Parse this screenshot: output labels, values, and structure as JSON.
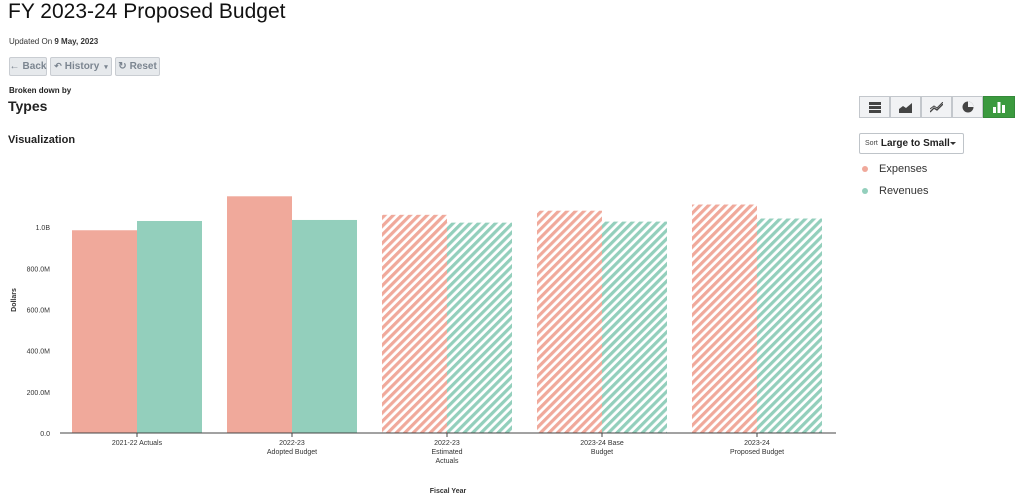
{
  "header": {
    "title": "FY 2023-24 Proposed Budget",
    "updated_prefix": "Updated On",
    "updated_date": "9 May, 2023"
  },
  "toolbar": {
    "back_label": "Back",
    "history_label": "History",
    "reset_label": "Reset"
  },
  "breakdown": {
    "label": "Broken down by",
    "value": "Types"
  },
  "visualization_label": "Visualization",
  "sort": {
    "prefix": "Sort",
    "value": "Large to Small"
  },
  "view_buttons": [
    {
      "icon": "table-icon"
    },
    {
      "icon": "area-chart-icon"
    },
    {
      "icon": "line-chart-icon"
    },
    {
      "icon": "pie-chart-icon"
    },
    {
      "icon": "bar-chart-icon",
      "active": true
    }
  ],
  "legend": [
    {
      "label": "Expenses",
      "color": "#f0a99b"
    },
    {
      "label": "Revenues",
      "color": "#93cfbc"
    }
  ],
  "chart_data": {
    "type": "bar",
    "ylabel": "Dollars",
    "xlabel": "Fiscal Year",
    "ylim": [
      0,
      1200000000
    ],
    "y_ticks": [
      {
        "value": 0,
        "label": "0.0"
      },
      {
        "value": 200000000,
        "label": "200.0M"
      },
      {
        "value": 400000000,
        "label": "400.0M"
      },
      {
        "value": 600000000,
        "label": "600.0M"
      },
      {
        "value": 800000000,
        "label": "800.0M"
      },
      {
        "value": 1000000000,
        "label": "1.0B"
      }
    ],
    "categories": [
      {
        "lines": [
          "2021-22 Actuals"
        ],
        "hatched": false
      },
      {
        "lines": [
          "2022-23",
          "Adopted Budget"
        ],
        "hatched": false
      },
      {
        "lines": [
          "2022-23",
          "Estimated",
          "Actuals"
        ],
        "hatched": true
      },
      {
        "lines": [
          "2023-24 Base",
          "Budget"
        ],
        "hatched": true
      },
      {
        "lines": [
          "2023-24",
          "Proposed Budget"
        ],
        "hatched": true
      }
    ],
    "series": [
      {
        "name": "Expenses",
        "color": "#f0a99b",
        "values": [
          985000000,
          1150000000,
          1060000000,
          1080000000,
          1110000000
        ]
      },
      {
        "name": "Revenues",
        "color": "#93cfbc",
        "values": [
          1030000000,
          1035000000,
          1022000000,
          1027000000,
          1042000000
        ]
      }
    ],
    "grid": false,
    "legend_position": "right"
  }
}
